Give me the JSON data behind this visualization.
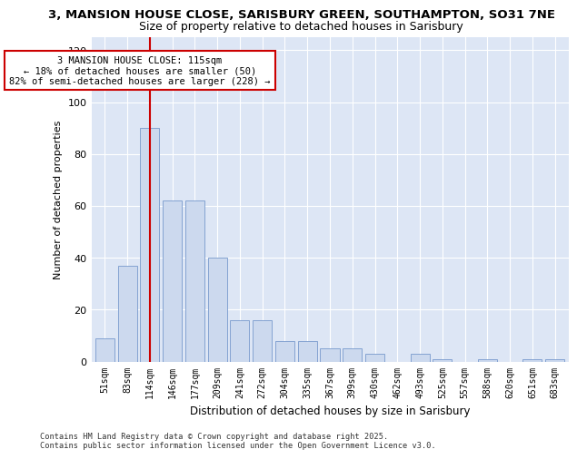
{
  "title_line1": "3, MANSION HOUSE CLOSE, SARISBURY GREEN, SOUTHAMPTON, SO31 7NE",
  "title_line2": "Size of property relative to detached houses in Sarisbury",
  "xlabel": "Distribution of detached houses by size in Sarisbury",
  "ylabel": "Number of detached properties",
  "bar_labels": [
    "51sqm",
    "83sqm",
    "114sqm",
    "146sqm",
    "177sqm",
    "209sqm",
    "241sqm",
    "272sqm",
    "304sqm",
    "335sqm",
    "367sqm",
    "399sqm",
    "430sqm",
    "462sqm",
    "493sqm",
    "525sqm",
    "557sqm",
    "588sqm",
    "620sqm",
    "651sqm",
    "683sqm"
  ],
  "bar_values": [
    9,
    37,
    90,
    62,
    62,
    40,
    16,
    16,
    8,
    8,
    5,
    5,
    3,
    0,
    3,
    1,
    0,
    1,
    0,
    1,
    1
  ],
  "bar_color": "#ccd9ee",
  "bar_edge_color": "#7799cc",
  "vline_x": 2,
  "vline_color": "#cc0000",
  "annotation_text": "3 MANSION HOUSE CLOSE: 115sqm\n← 18% of detached houses are smaller (50)\n82% of semi-detached houses are larger (228) →",
  "annotation_box_color": "#ffffff",
  "annotation_box_edge": "#cc0000",
  "ylim": [
    0,
    125
  ],
  "yticks": [
    0,
    20,
    40,
    60,
    80,
    100,
    120
  ],
  "bg_color": "#dde6f5",
  "footer_line1": "Contains HM Land Registry data © Crown copyright and database right 2025.",
  "footer_line2": "Contains public sector information licensed under the Open Government Licence v3.0.",
  "title_fontsize": 9.5,
  "subtitle_fontsize": 9
}
